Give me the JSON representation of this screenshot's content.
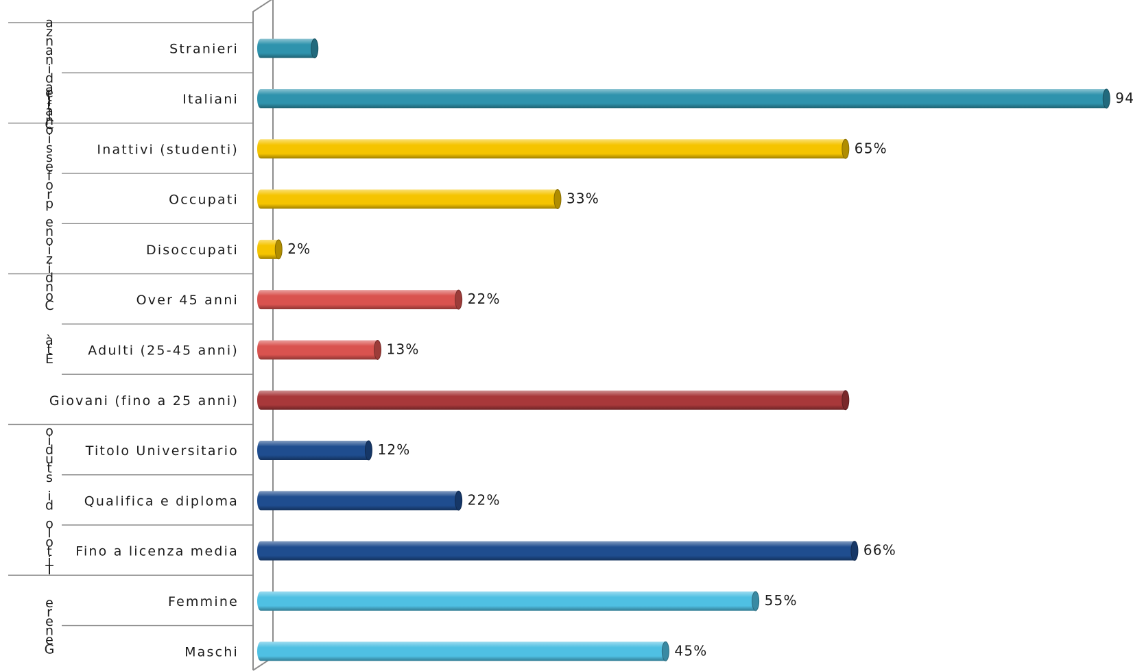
{
  "chart_data": {
    "type": "bar",
    "orientation": "horizontal",
    "value_format": "percent",
    "xlim": [
      0,
      100
    ],
    "groups": [
      {
        "label": "Cittadinanza",
        "color": "#2f93ad",
        "bars": [
          {
            "category": "Stranieri",
            "value": 6,
            "label": ""
          },
          {
            "category": "Italiani",
            "value": 94,
            "label": "94%"
          }
        ]
      },
      {
        "label": "Condizione professionale",
        "color": "#f5c400",
        "bars": [
          {
            "category": "Inattivi (studenti)",
            "value": 65,
            "label": "65%"
          },
          {
            "category": "Occupati",
            "value": 33,
            "label": "33%"
          },
          {
            "category": "Disoccupati",
            "value": 2,
            "label": "2%"
          }
        ]
      },
      {
        "label": "Età",
        "color": "#d9534f",
        "bars": [
          {
            "category": "Over 45 anni",
            "value": 22,
            "label": "22%"
          },
          {
            "category": "Adulti (25-45 anni)",
            "value": 13,
            "label": "13%"
          },
          {
            "category": "Giovani (fino a 25 anni)",
            "value": 65,
            "label": "",
            "color": "#a8383a"
          }
        ]
      },
      {
        "label": "Titolo di studio",
        "color": "#1f4d8f",
        "bars": [
          {
            "category": "Titolo Universitario",
            "value": 12,
            "label": "12%"
          },
          {
            "category": "Qualifica e diploma",
            "value": 22,
            "label": "22%"
          },
          {
            "category": "Fino a licenza media",
            "value": 66,
            "label": "66%"
          }
        ]
      },
      {
        "label": "Genere",
        "color": "#4fc0e3",
        "bars": [
          {
            "category": "Femmine",
            "value": 55,
            "label": "55%"
          },
          {
            "category": "Maschi",
            "value": 45,
            "label": "45%"
          }
        ]
      }
    ]
  }
}
